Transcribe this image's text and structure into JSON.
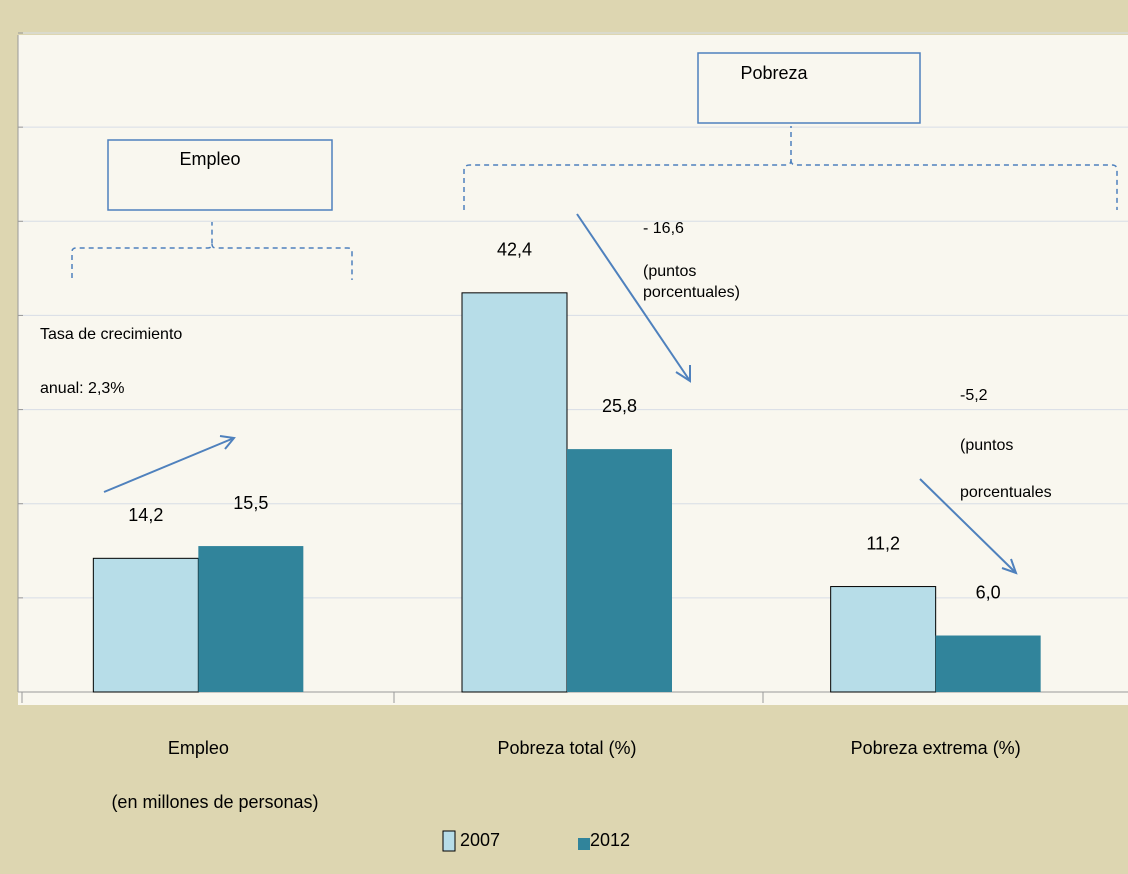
{
  "chart_data": {
    "type": "bar",
    "categories": [
      "Empleo",
      "Pobreza total  (%)",
      "Pobreza extrema  (%)"
    ],
    "category_note": "(en millones  de personas)",
    "series": [
      {
        "name": "2007",
        "color": "#b7dde8",
        "values": [
          14.2,
          42.4,
          11.2
        ],
        "value_labels": [
          "14,2",
          "42,4",
          "11,2"
        ]
      },
      {
        "name": "2012",
        "color": "#31849b",
        "values": [
          15.5,
          25.8,
          6.0
        ],
        "value_labels": [
          "15,5",
          "25,8",
          "6,0"
        ]
      }
    ],
    "ylim": [
      0,
      70
    ],
    "yticks": [
      0,
      10,
      20,
      30,
      40,
      50,
      60,
      70
    ],
    "grid": true,
    "legend": "bottom",
    "annotations": [
      "Empleo",
      "Pobreza",
      "Tasa de crecimiento",
      "anual: 2,3%",
      "- 16,6",
      "(puntos",
      "porcentuales)",
      "-5,2",
      "(puntos",
      "porcentuales"
    ]
  }
}
